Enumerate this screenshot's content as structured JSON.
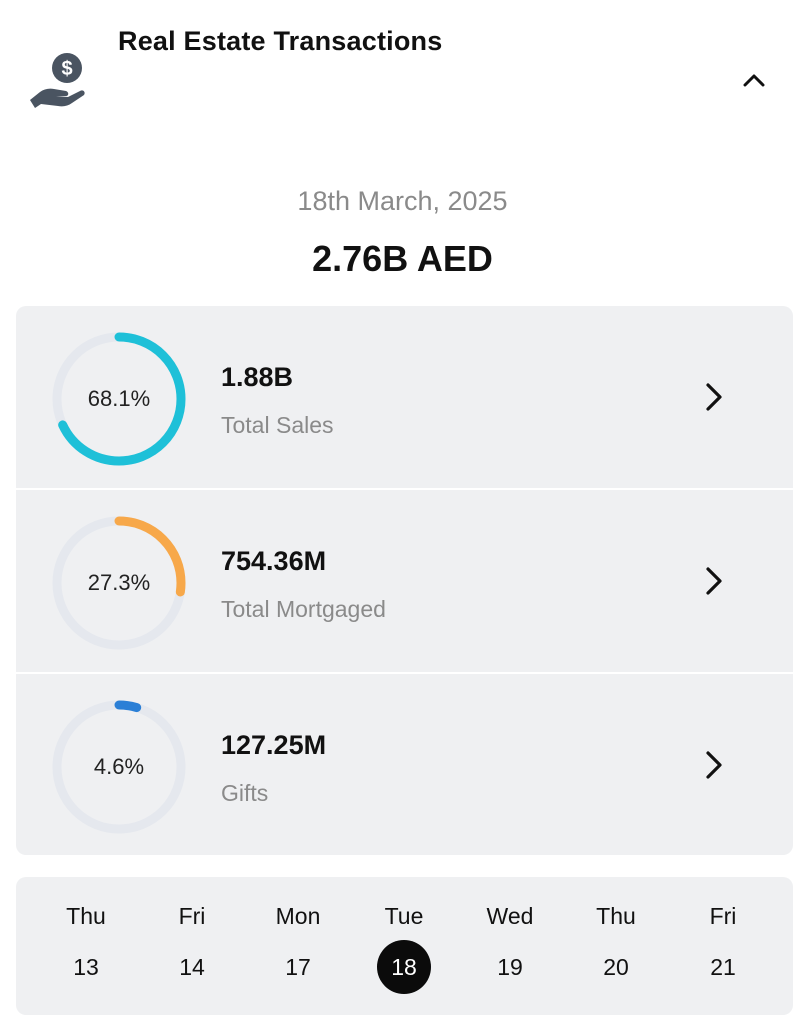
{
  "header": {
    "title": "Real Estate Transactions",
    "icon": "hand-holding-dollar-icon",
    "collapse_icon": "chevron-up-icon"
  },
  "summary": {
    "date": "18th March, 2025",
    "total": "2.76B AED"
  },
  "stats": [
    {
      "percent_label": "68.1%",
      "percent": 68.1,
      "value": "1.88B",
      "label": "Total Sales",
      "color": "#1ec0d8"
    },
    {
      "percent_label": "27.3%",
      "percent": 27.3,
      "value": "754.36M",
      "label": "Total Mortgaged",
      "color": "#f7a84a"
    },
    {
      "percent_label": "4.6%",
      "percent": 4.6,
      "value": "127.25M",
      "label": "Gifts",
      "color": "#2b7fd6"
    }
  ],
  "week": [
    {
      "day": "Thu",
      "date": "13"
    },
    {
      "day": "Fri",
      "date": "14"
    },
    {
      "day": "Mon",
      "date": "17"
    },
    {
      "day": "Tue",
      "date": "18",
      "selected": true
    },
    {
      "day": "Wed",
      "date": "19"
    },
    {
      "day": "Thu",
      "date": "20"
    },
    {
      "day": "Fri",
      "date": "21"
    }
  ],
  "colors": {
    "donut_track": "#e5e8ee",
    "panel_bg": "#eff0f2",
    "selected_day_bg": "#0b0b0b"
  }
}
